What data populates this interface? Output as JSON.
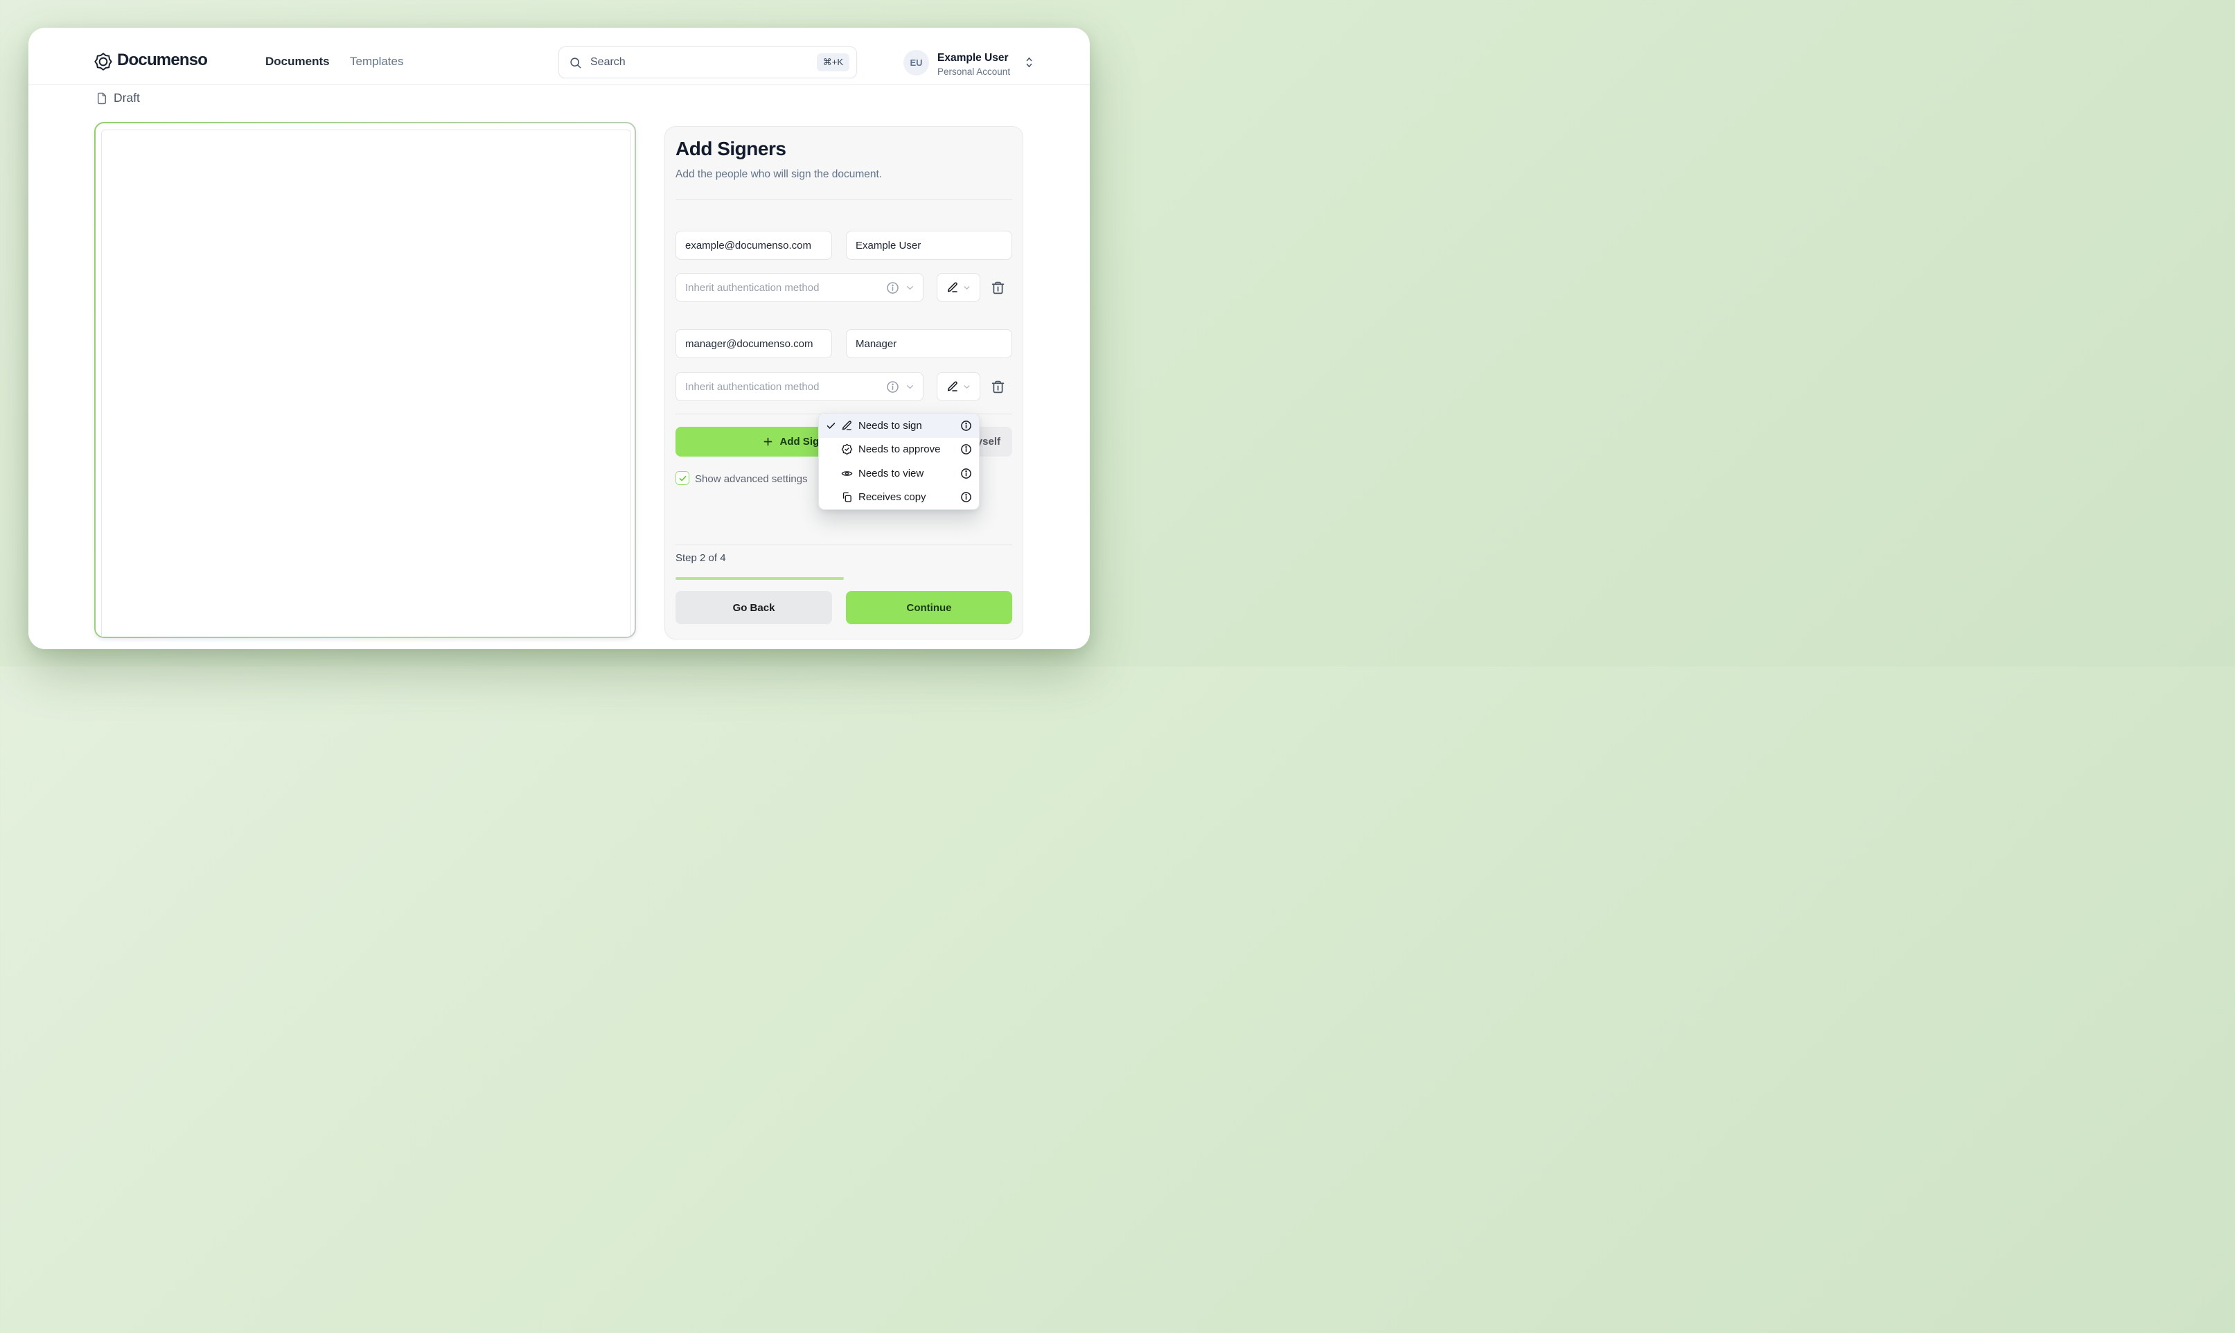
{
  "header": {
    "brand": "Documenso",
    "nav": [
      {
        "label": "Documents",
        "active": true
      },
      {
        "label": "Templates",
        "active": false
      }
    ],
    "search": {
      "placeholder": "Search",
      "shortcut": "⌘+K"
    },
    "user": {
      "initials": "EU",
      "name": "Example User",
      "account": "Personal Account"
    }
  },
  "document": {
    "status_label": "Draft"
  },
  "panel": {
    "title": "Add Signers",
    "subtitle": "Add the people who will sign the document.",
    "signers": [
      {
        "email": "example@documenso.com",
        "name": "Example User",
        "auth_placeholder": "Inherit authentication method"
      },
      {
        "email": "manager@documenso.com",
        "name": "Manager",
        "auth_placeholder": "Inherit authentication method"
      }
    ],
    "buttons": {
      "add_signer": "Add Signer",
      "add_myself": "Add Myself"
    },
    "advanced_label": "Show advanced settings",
    "advanced_checked": true,
    "step": {
      "label": "Step 2 of 4",
      "current": 2,
      "total": 4
    },
    "footer": {
      "back": "Go Back",
      "continue": "Continue"
    }
  },
  "role_menu": {
    "items": [
      {
        "label": "Needs to sign",
        "icon": "signature-pen-icon",
        "selected": true
      },
      {
        "label": "Needs to approve",
        "icon": "badge-check-icon",
        "selected": false
      },
      {
        "label": "Needs to view",
        "icon": "eye-icon",
        "selected": false
      },
      {
        "label": "Receives copy",
        "icon": "copy-icon",
        "selected": false
      }
    ]
  },
  "colors": {
    "accent_green": "#92e25c",
    "accent_green_text": "#173a0e",
    "progress_green": "#b6e49b",
    "backdrop_green": "#d9ebd0",
    "panel_bg": "#f6f7f6",
    "menu_selected_bg": "#f0f2fa",
    "muted_text": "#64748b"
  }
}
